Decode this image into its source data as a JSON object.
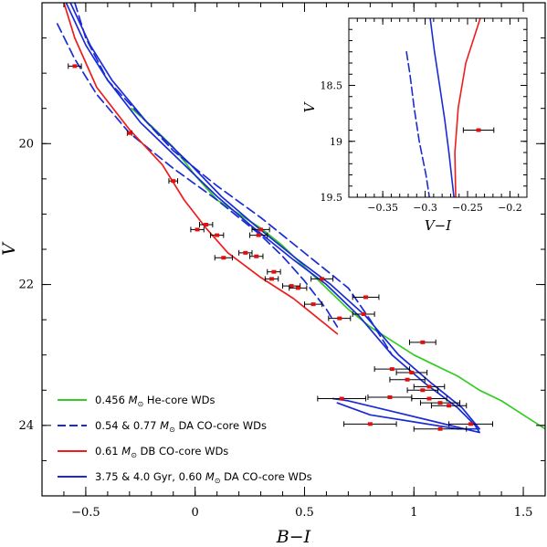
{
  "chart_data": [
    {
      "type": "line",
      "panel": "main",
      "xlabel": "B−I",
      "ylabel": "V",
      "xlim": [
        -0.7,
        1.6
      ],
      "ylim": [
        25,
        18.0
      ],
      "y_inverted": true,
      "xticks": [
        "−0.5",
        "0",
        "0.5",
        "1",
        "1.5"
      ],
      "yticks": [
        "20",
        "22",
        "24"
      ],
      "legend": {
        "placement": "bottom-left",
        "entries": [
          {
            "series": "he_core",
            "text": "0.456 M⊙ He-core WDs"
          },
          {
            "series": "da_co_054",
            "text": "0.54 & 0.77 M⊙ DA CO-core WDs"
          },
          {
            "series": "db_co",
            "text": "0.61 M⊙ DB CO-core WDs"
          },
          {
            "series": "iso_375",
            "text": "3.75 & 4.0 Gyr, 0.60 M⊙ DA CO-core WDs"
          }
        ]
      },
      "series": [
        {
          "id": "he_core",
          "color": "#33cc22",
          "dash": false,
          "points": [
            [
              -0.29,
              19.5
            ],
            [
              -0.2,
              19.75
            ],
            [
              -0.1,
              20.05
            ],
            [
              0.0,
              20.45
            ],
            [
              0.1,
              20.8
            ],
            [
              0.2,
              21.0
            ],
            [
              0.3,
              21.2
            ],
            [
              0.4,
              21.45
            ],
            [
              0.5,
              21.75
            ],
            [
              0.6,
              22.05
            ],
            [
              0.7,
              22.35
            ],
            [
              0.8,
              22.6
            ],
            [
              0.9,
              22.8
            ],
            [
              1.0,
              23.0
            ],
            [
              1.1,
              23.15
            ],
            [
              1.2,
              23.3
            ],
            [
              1.3,
              23.5
            ],
            [
              1.4,
              23.65
            ],
            [
              1.5,
              23.85
            ],
            [
              1.6,
              24.05
            ]
          ]
        },
        {
          "id": "da_co_054",
          "color": "#1a2bd6",
          "dash": true,
          "points": [
            [
              -0.63,
              18.3
            ],
            [
              -0.55,
              18.8
            ],
            [
              -0.45,
              19.3
            ],
            [
              -0.3,
              19.85
            ],
            [
              -0.1,
              20.35
            ],
            [
              0.1,
              20.8
            ],
            [
              0.3,
              21.3
            ],
            [
              0.4,
              21.6
            ],
            [
              0.5,
              21.95
            ],
            [
              0.6,
              22.35
            ],
            [
              0.65,
              22.6
            ]
          ]
        },
        {
          "id": "da_co_077",
          "color": "#1a2bd6",
          "dash": true,
          "points": [
            [
              -0.55,
              18.0
            ],
            [
              -0.5,
              18.5
            ],
            [
              -0.4,
              19.1
            ],
            [
              -0.25,
              19.6
            ],
            [
              -0.1,
              20.1
            ],
            [
              0.1,
              20.6
            ],
            [
              0.3,
              21.05
            ],
            [
              0.5,
              21.55
            ],
            [
              0.7,
              22.05
            ],
            [
              0.8,
              22.5
            ],
            [
              0.9,
              23.0
            ]
          ]
        },
        {
          "id": "db_co",
          "color": "#ee1c1c",
          "dash": false,
          "points": [
            [
              -0.6,
              18.0
            ],
            [
              -0.55,
              18.5
            ],
            [
              -0.45,
              19.2
            ],
            [
              -0.3,
              19.8
            ],
            [
              -0.15,
              20.3
            ],
            [
              -0.05,
              20.8
            ],
            [
              0.05,
              21.2
            ],
            [
              0.15,
              21.55
            ],
            [
              0.3,
              21.9
            ],
            [
              0.45,
              22.2
            ],
            [
              0.55,
              22.45
            ],
            [
              0.65,
              22.7
            ]
          ]
        },
        {
          "id": "iso_375",
          "color": "#1a2bd6",
          "dash": false,
          "points": [
            [
              -0.59,
              18.0
            ],
            [
              -0.5,
              18.6
            ],
            [
              -0.4,
              19.1
            ],
            [
              -0.25,
              19.7
            ],
            [
              -0.05,
              20.3
            ],
            [
              0.1,
              20.75
            ],
            [
              0.25,
              21.15
            ],
            [
              0.45,
              21.65
            ],
            [
              0.6,
              22.0
            ],
            [
              0.75,
              22.45
            ],
            [
              0.9,
              23.0
            ],
            [
              1.05,
              23.4
            ],
            [
              1.2,
              23.75
            ],
            [
              1.28,
              24.0
            ],
            [
              1.3,
              24.1
            ],
            [
              1.1,
              23.95
            ],
            [
              0.9,
              23.8
            ],
            [
              0.7,
              23.65
            ],
            [
              0.63,
              23.62
            ]
          ]
        },
        {
          "id": "iso_40",
          "color": "#1a2bd6",
          "dash": false,
          "points": [
            [
              -0.57,
              18.0
            ],
            [
              -0.48,
              18.6
            ],
            [
              -0.38,
              19.1
            ],
            [
              -0.22,
              19.7
            ],
            [
              -0.02,
              20.3
            ],
            [
              0.12,
              20.75
            ],
            [
              0.27,
              21.15
            ],
            [
              0.47,
              21.65
            ],
            [
              0.62,
              22.0
            ],
            [
              0.78,
              22.45
            ],
            [
              0.93,
              23.0
            ],
            [
              1.08,
              23.4
            ],
            [
              1.22,
              23.75
            ],
            [
              1.3,
              24.05
            ],
            [
              1.2,
              24.05
            ],
            [
              1.0,
              23.95
            ],
            [
              0.8,
              23.85
            ],
            [
              0.65,
              23.68
            ]
          ]
        }
      ],
      "points": [
        {
          "x": -0.55,
          "y": 18.9,
          "xerr": 0.03
        },
        {
          "x": -0.3,
          "y": 19.85,
          "xerr": 0.01
        },
        {
          "x": -0.1,
          "y": 20.53,
          "xerr": 0.02
        },
        {
          "x": 0.05,
          "y": 21.15,
          "xerr": 0.03
        },
        {
          "x": 0.01,
          "y": 21.22,
          "xerr": 0.03
        },
        {
          "x": 0.3,
          "y": 21.22,
          "xerr": 0.04
        },
        {
          "x": 0.1,
          "y": 21.3,
          "xerr": 0.03
        },
        {
          "x": 0.29,
          "y": 21.3,
          "xerr": 0.04
        },
        {
          "x": 0.23,
          "y": 21.55,
          "xerr": 0.03
        },
        {
          "x": 0.28,
          "y": 21.6,
          "xerr": 0.03
        },
        {
          "x": 0.13,
          "y": 21.62,
          "xerr": 0.04
        },
        {
          "x": 0.36,
          "y": 21.82,
          "xerr": 0.03
        },
        {
          "x": 0.35,
          "y": 21.92,
          "xerr": 0.03
        },
        {
          "x": 0.58,
          "y": 21.92,
          "xerr": 0.05
        },
        {
          "x": 0.44,
          "y": 22.02,
          "xerr": 0.04
        },
        {
          "x": 0.47,
          "y": 22.05,
          "xerr": 0.04
        },
        {
          "x": 0.78,
          "y": 22.18,
          "xerr": 0.06
        },
        {
          "x": 0.54,
          "y": 22.28,
          "xerr": 0.04
        },
        {
          "x": 0.77,
          "y": 22.42,
          "xerr": 0.05
        },
        {
          "x": 0.66,
          "y": 22.48,
          "xerr": 0.05
        },
        {
          "x": 1.04,
          "y": 22.82,
          "xerr": 0.06
        },
        {
          "x": 0.9,
          "y": 23.2,
          "xerr": 0.08
        },
        {
          "x": 0.99,
          "y": 23.25,
          "xerr": 0.07
        },
        {
          "x": 0.97,
          "y": 23.35,
          "xerr": 0.08
        },
        {
          "x": 1.07,
          "y": 23.45,
          "xerr": 0.07
        },
        {
          "x": 1.04,
          "y": 23.5,
          "xerr": 0.07
        },
        {
          "x": 0.89,
          "y": 23.6,
          "xerr": 0.1
        },
        {
          "x": 0.67,
          "y": 23.62,
          "xerr": 0.11
        },
        {
          "x": 1.07,
          "y": 23.62,
          "xerr": 0.08
        },
        {
          "x": 1.16,
          "y": 23.72,
          "xerr": 0.08
        },
        {
          "x": 1.12,
          "y": 23.68,
          "xerr": 0.09
        },
        {
          "x": 0.8,
          "y": 23.98,
          "xerr": 0.12
        },
        {
          "x": 1.26,
          "y": 23.98,
          "xerr": 0.1
        },
        {
          "x": 1.12,
          "y": 24.05,
          "xerr": 0.12
        }
      ]
    },
    {
      "type": "line",
      "panel": "inset",
      "placement": "top-right",
      "xlabel": "V−I",
      "ylabel": "V",
      "xlim": [
        -0.39,
        -0.18
      ],
      "ylim": [
        19.5,
        17.9
      ],
      "y_inverted": true,
      "xticks": [
        "−0.35",
        "−0.3",
        "−0.25",
        "−0.2"
      ],
      "yticks": [
        "18.5",
        "19",
        "19.5"
      ],
      "series": [
        {
          "id": "inset_dashed",
          "color": "#1a2bd6",
          "dash": true,
          "points": [
            [
              -0.322,
              18.2
            ],
            [
              -0.318,
              18.4
            ],
            [
              -0.313,
              18.7
            ],
            [
              -0.307,
              19.0
            ],
            [
              -0.299,
              19.3
            ],
            [
              -0.295,
              19.5
            ]
          ]
        },
        {
          "id": "inset_solid",
          "color": "#1a2bd6",
          "dash": false,
          "points": [
            [
              -0.294,
              17.9
            ],
            [
              -0.289,
              18.2
            ],
            [
              -0.283,
              18.5
            ],
            [
              -0.277,
              18.8
            ],
            [
              -0.272,
              19.1
            ],
            [
              -0.266,
              19.5
            ]
          ]
        },
        {
          "id": "inset_red",
          "color": "#ee1c1c",
          "dash": false,
          "points": [
            [
              -0.235,
              17.9
            ],
            [
              -0.252,
              18.3
            ],
            [
              -0.261,
              18.7
            ],
            [
              -0.265,
              19.1
            ],
            [
              -0.264,
              19.5
            ]
          ]
        }
      ],
      "points": [
        {
          "x": -0.237,
          "y": 18.9,
          "xerr": 0.018
        }
      ]
    }
  ]
}
